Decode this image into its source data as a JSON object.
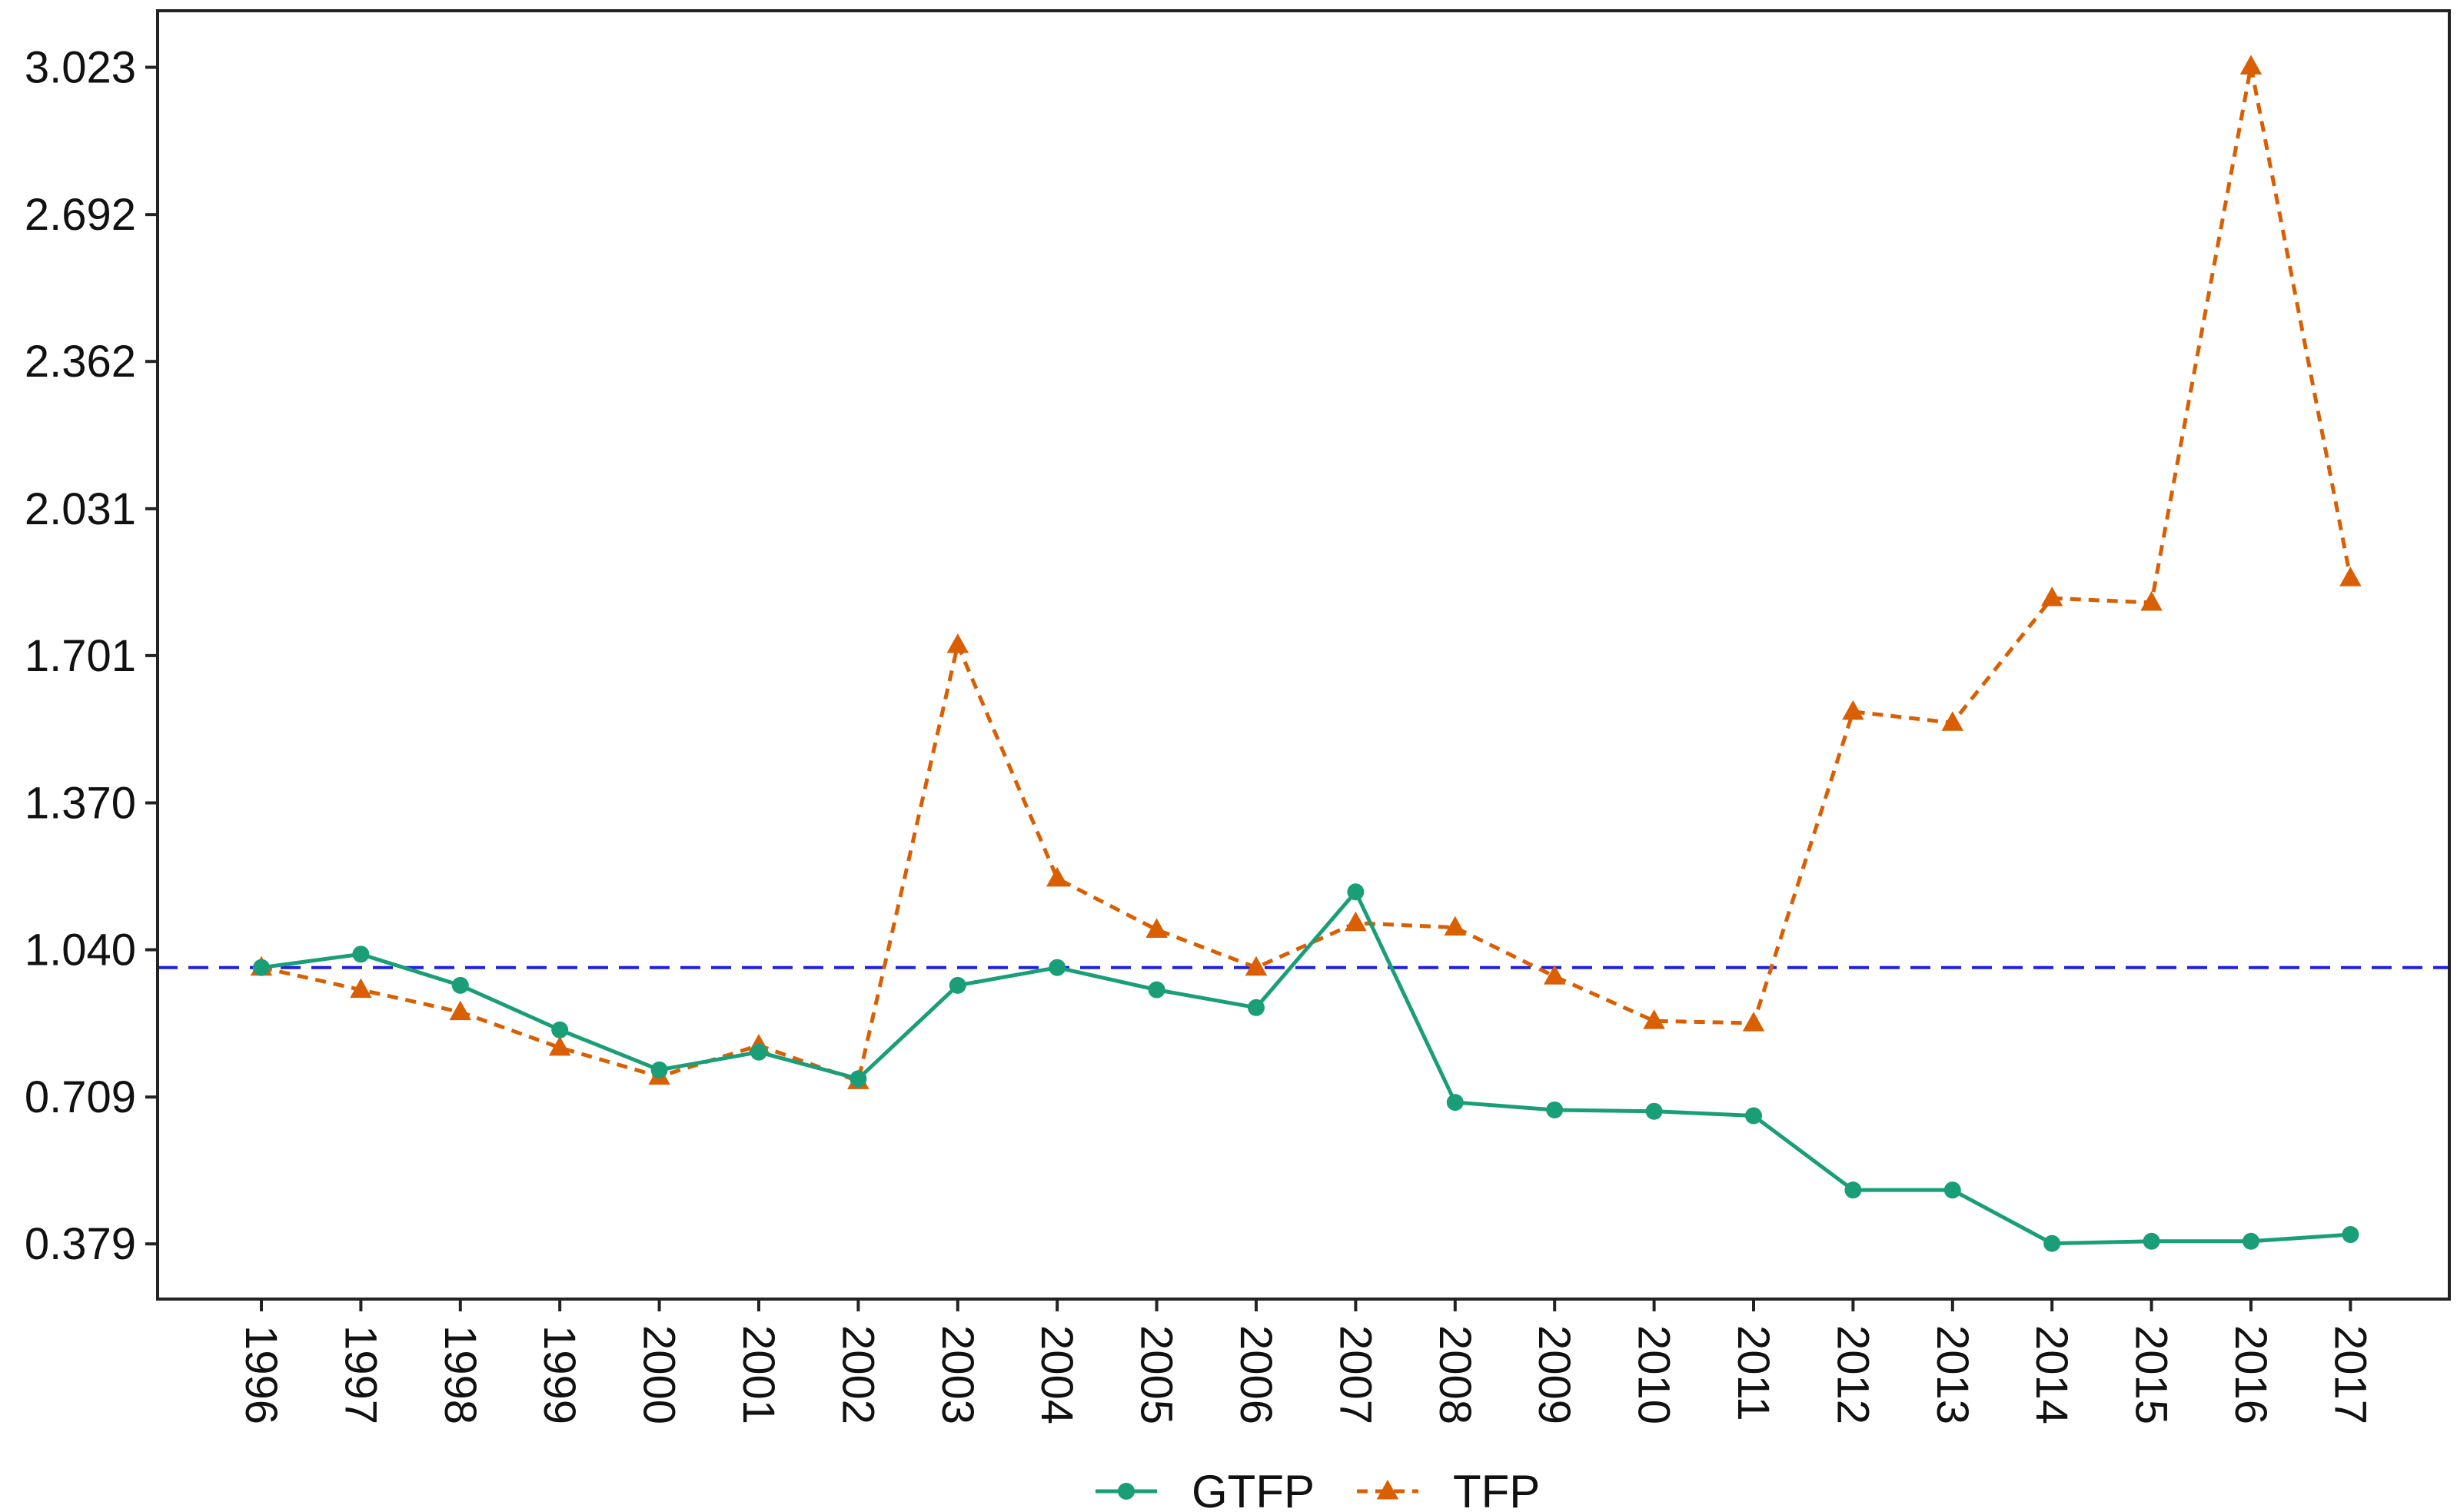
{
  "chart_data": {
    "type": "line",
    "title": "",
    "xlabel": "",
    "ylabel": "",
    "categories": [
      "1996",
      "1997",
      "1998",
      "1999",
      "2000",
      "2001",
      "2002",
      "2003",
      "2004",
      "2005",
      "2006",
      "2007",
      "2008",
      "2009",
      "2010",
      "2011",
      "2012",
      "2013",
      "2014",
      "2015",
      "2016",
      "2017"
    ],
    "ylim": [
      0.255,
      3.15
    ],
    "yticks": [
      "0.379",
      "0.709",
      "1.040",
      "1.370",
      "1.701",
      "2.031",
      "2.362",
      "2.692",
      "3.023"
    ],
    "reference_line": {
      "y": 1.0,
      "color": "#1f1fe6",
      "style": "dashed"
    },
    "grid": false,
    "legend_position": "bottom",
    "series": [
      {
        "name": "GTFP",
        "color": "#1a9e77",
        "line_style": "solid",
        "marker": "circle",
        "values": [
          1.0,
          1.03,
          0.96,
          0.86,
          0.77,
          0.81,
          0.75,
          0.96,
          1.0,
          0.95,
          0.91,
          1.17,
          0.697,
          0.68,
          0.677,
          0.667,
          0.5,
          0.5,
          0.38,
          0.385,
          0.385,
          0.4
        ]
      },
      {
        "name": "TFP",
        "color": "#d95f02",
        "line_style": "dashed",
        "marker": "triangle",
        "values": [
          1.0,
          0.95,
          0.9,
          0.82,
          0.755,
          0.825,
          0.745,
          1.725,
          1.2,
          1.085,
          1.0,
          1.1,
          1.09,
          0.98,
          0.88,
          0.875,
          1.575,
          1.55,
          1.83,
          1.82,
          3.025,
          1.875
        ]
      }
    ]
  }
}
